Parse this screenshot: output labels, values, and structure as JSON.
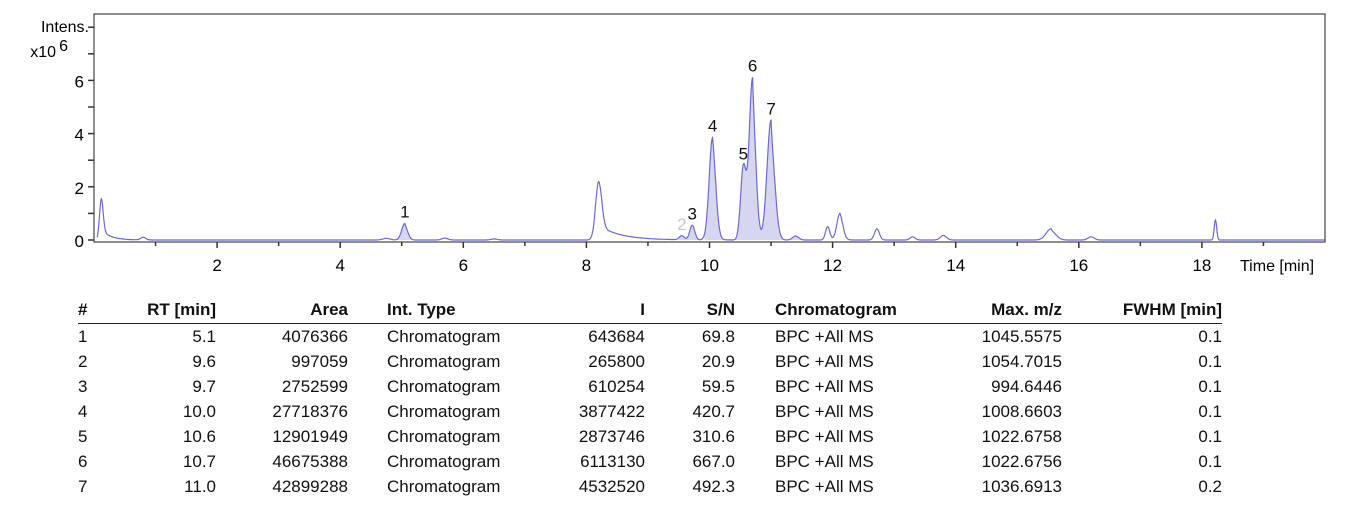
{
  "chart_data": {
    "type": "line",
    "ylabel": "Intens.",
    "yscale_label": "x10",
    "yscale_exp": "6",
    "xlabel": "Time [min]",
    "xlim": [
      0,
      20
    ],
    "ylim": [
      -0.3,
      8.5
    ],
    "xticks": [
      2,
      4,
      6,
      8,
      10,
      12,
      14,
      16,
      18
    ],
    "yticks": [
      0,
      2,
      4,
      6
    ],
    "line_color": "#6b6bd0",
    "fill_color": "#d6d6f0",
    "peaks": [
      {
        "rt": 0.12,
        "height": 1.55,
        "sigma": 0.03,
        "tail": 0.15
      },
      {
        "rt": 0.8,
        "height": 0.1,
        "sigma": 0.04,
        "tail": 0
      },
      {
        "rt": 4.75,
        "height": 0.06,
        "sigma": 0.06,
        "tail": 0
      },
      {
        "rt": 5.05,
        "height": 0.62,
        "sigma": 0.05,
        "tail": 0.02
      },
      {
        "rt": 5.7,
        "height": 0.07,
        "sigma": 0.05,
        "tail": 0
      },
      {
        "rt": 6.5,
        "height": 0.04,
        "sigma": 0.05,
        "tail": 0
      },
      {
        "rt": 8.2,
        "height": 2.2,
        "sigma": 0.05,
        "tail": 0.35
      },
      {
        "rt": 9.55,
        "height": 0.15,
        "sigma": 0.04,
        "tail": 0
      },
      {
        "rt": 9.72,
        "height": 0.55,
        "sigma": 0.04,
        "tail": 0
      },
      {
        "rt": 10.05,
        "height": 3.85,
        "sigma": 0.055,
        "tail": 0.04
      },
      {
        "rt": 10.55,
        "height": 2.7,
        "sigma": 0.045,
        "tail": 0
      },
      {
        "rt": 10.7,
        "height": 6.1,
        "sigma": 0.055,
        "tail": 0.02
      },
      {
        "rt": 11.0,
        "height": 4.5,
        "sigma": 0.065,
        "tail": 0.02
      },
      {
        "rt": 11.4,
        "height": 0.15,
        "sigma": 0.05,
        "tail": 0
      },
      {
        "rt": 11.92,
        "height": 0.5,
        "sigma": 0.035,
        "tail": 0
      },
      {
        "rt": 12.12,
        "height": 1.0,
        "sigma": 0.05,
        "tail": 0.04
      },
      {
        "rt": 12.72,
        "height": 0.42,
        "sigma": 0.04,
        "tail": 0
      },
      {
        "rt": 13.3,
        "height": 0.12,
        "sigma": 0.04,
        "tail": 0
      },
      {
        "rt": 13.8,
        "height": 0.17,
        "sigma": 0.05,
        "tail": 0
      },
      {
        "rt": 15.55,
        "height": 0.42,
        "sigma": 0.08,
        "tail": 0.02
      },
      {
        "rt": 16.2,
        "height": 0.12,
        "sigma": 0.05,
        "tail": 0
      },
      {
        "rt": 18.22,
        "height": 0.75,
        "sigma": 0.02,
        "tail": 0
      }
    ],
    "filled_ranges": [
      [
        4.9,
        5.25
      ],
      [
        9.5,
        9.85
      ],
      [
        9.92,
        10.35
      ],
      [
        10.42,
        11.5
      ]
    ],
    "annotations": [
      {
        "label": "1",
        "rt": 5.05,
        "y": 0.62,
        "faint": false
      },
      {
        "label": "2",
        "rt": 9.55,
        "y": 0.15,
        "faint": true
      },
      {
        "label": "3",
        "rt": 9.72,
        "y": 0.55,
        "faint": false
      },
      {
        "label": "4",
        "rt": 10.05,
        "y": 3.85,
        "faint": false
      },
      {
        "label": "5",
        "rt": 10.55,
        "y": 2.8,
        "faint": false
      },
      {
        "label": "6",
        "rt": 10.7,
        "y": 6.1,
        "faint": false
      },
      {
        "label": "7",
        "rt": 11.0,
        "y": 4.5,
        "faint": false
      }
    ]
  },
  "table": {
    "headers": [
      "#",
      "RT [min]",
      "Area",
      "Int. Type",
      "I",
      "S/N",
      "Chromatogram",
      "Max. m/z",
      "FWHM [min]"
    ],
    "rows": [
      [
        "1",
        "5.1",
        "4076366",
        "Chromatogram",
        "643684",
        "69.8",
        "BPC +All MS",
        "1045.5575",
        "0.1"
      ],
      [
        "2",
        "9.6",
        "997059",
        "Chromatogram",
        "265800",
        "20.9",
        "BPC +All MS",
        "1054.7015",
        "0.1"
      ],
      [
        "3",
        "9.7",
        "2752599",
        "Chromatogram",
        "610254",
        "59.5",
        "BPC +All MS",
        "994.6446",
        "0.1"
      ],
      [
        "4",
        "10.0",
        "27718376",
        "Chromatogram",
        "3877422",
        "420.7",
        "BPC +All MS",
        "1008.6603",
        "0.1"
      ],
      [
        "5",
        "10.6",
        "12901949",
        "Chromatogram",
        "2873746",
        "310.6",
        "BPC +All MS",
        "1022.6758",
        "0.1"
      ],
      [
        "6",
        "10.7",
        "46675388",
        "Chromatogram",
        "6113130",
        "667.0",
        "BPC +All MS",
        "1022.6756",
        "0.1"
      ],
      [
        "7",
        "11.0",
        "42899288",
        "Chromatogram",
        "4532520",
        "492.3",
        "BPC +All MS",
        "1036.6913",
        "0.2"
      ]
    ]
  }
}
